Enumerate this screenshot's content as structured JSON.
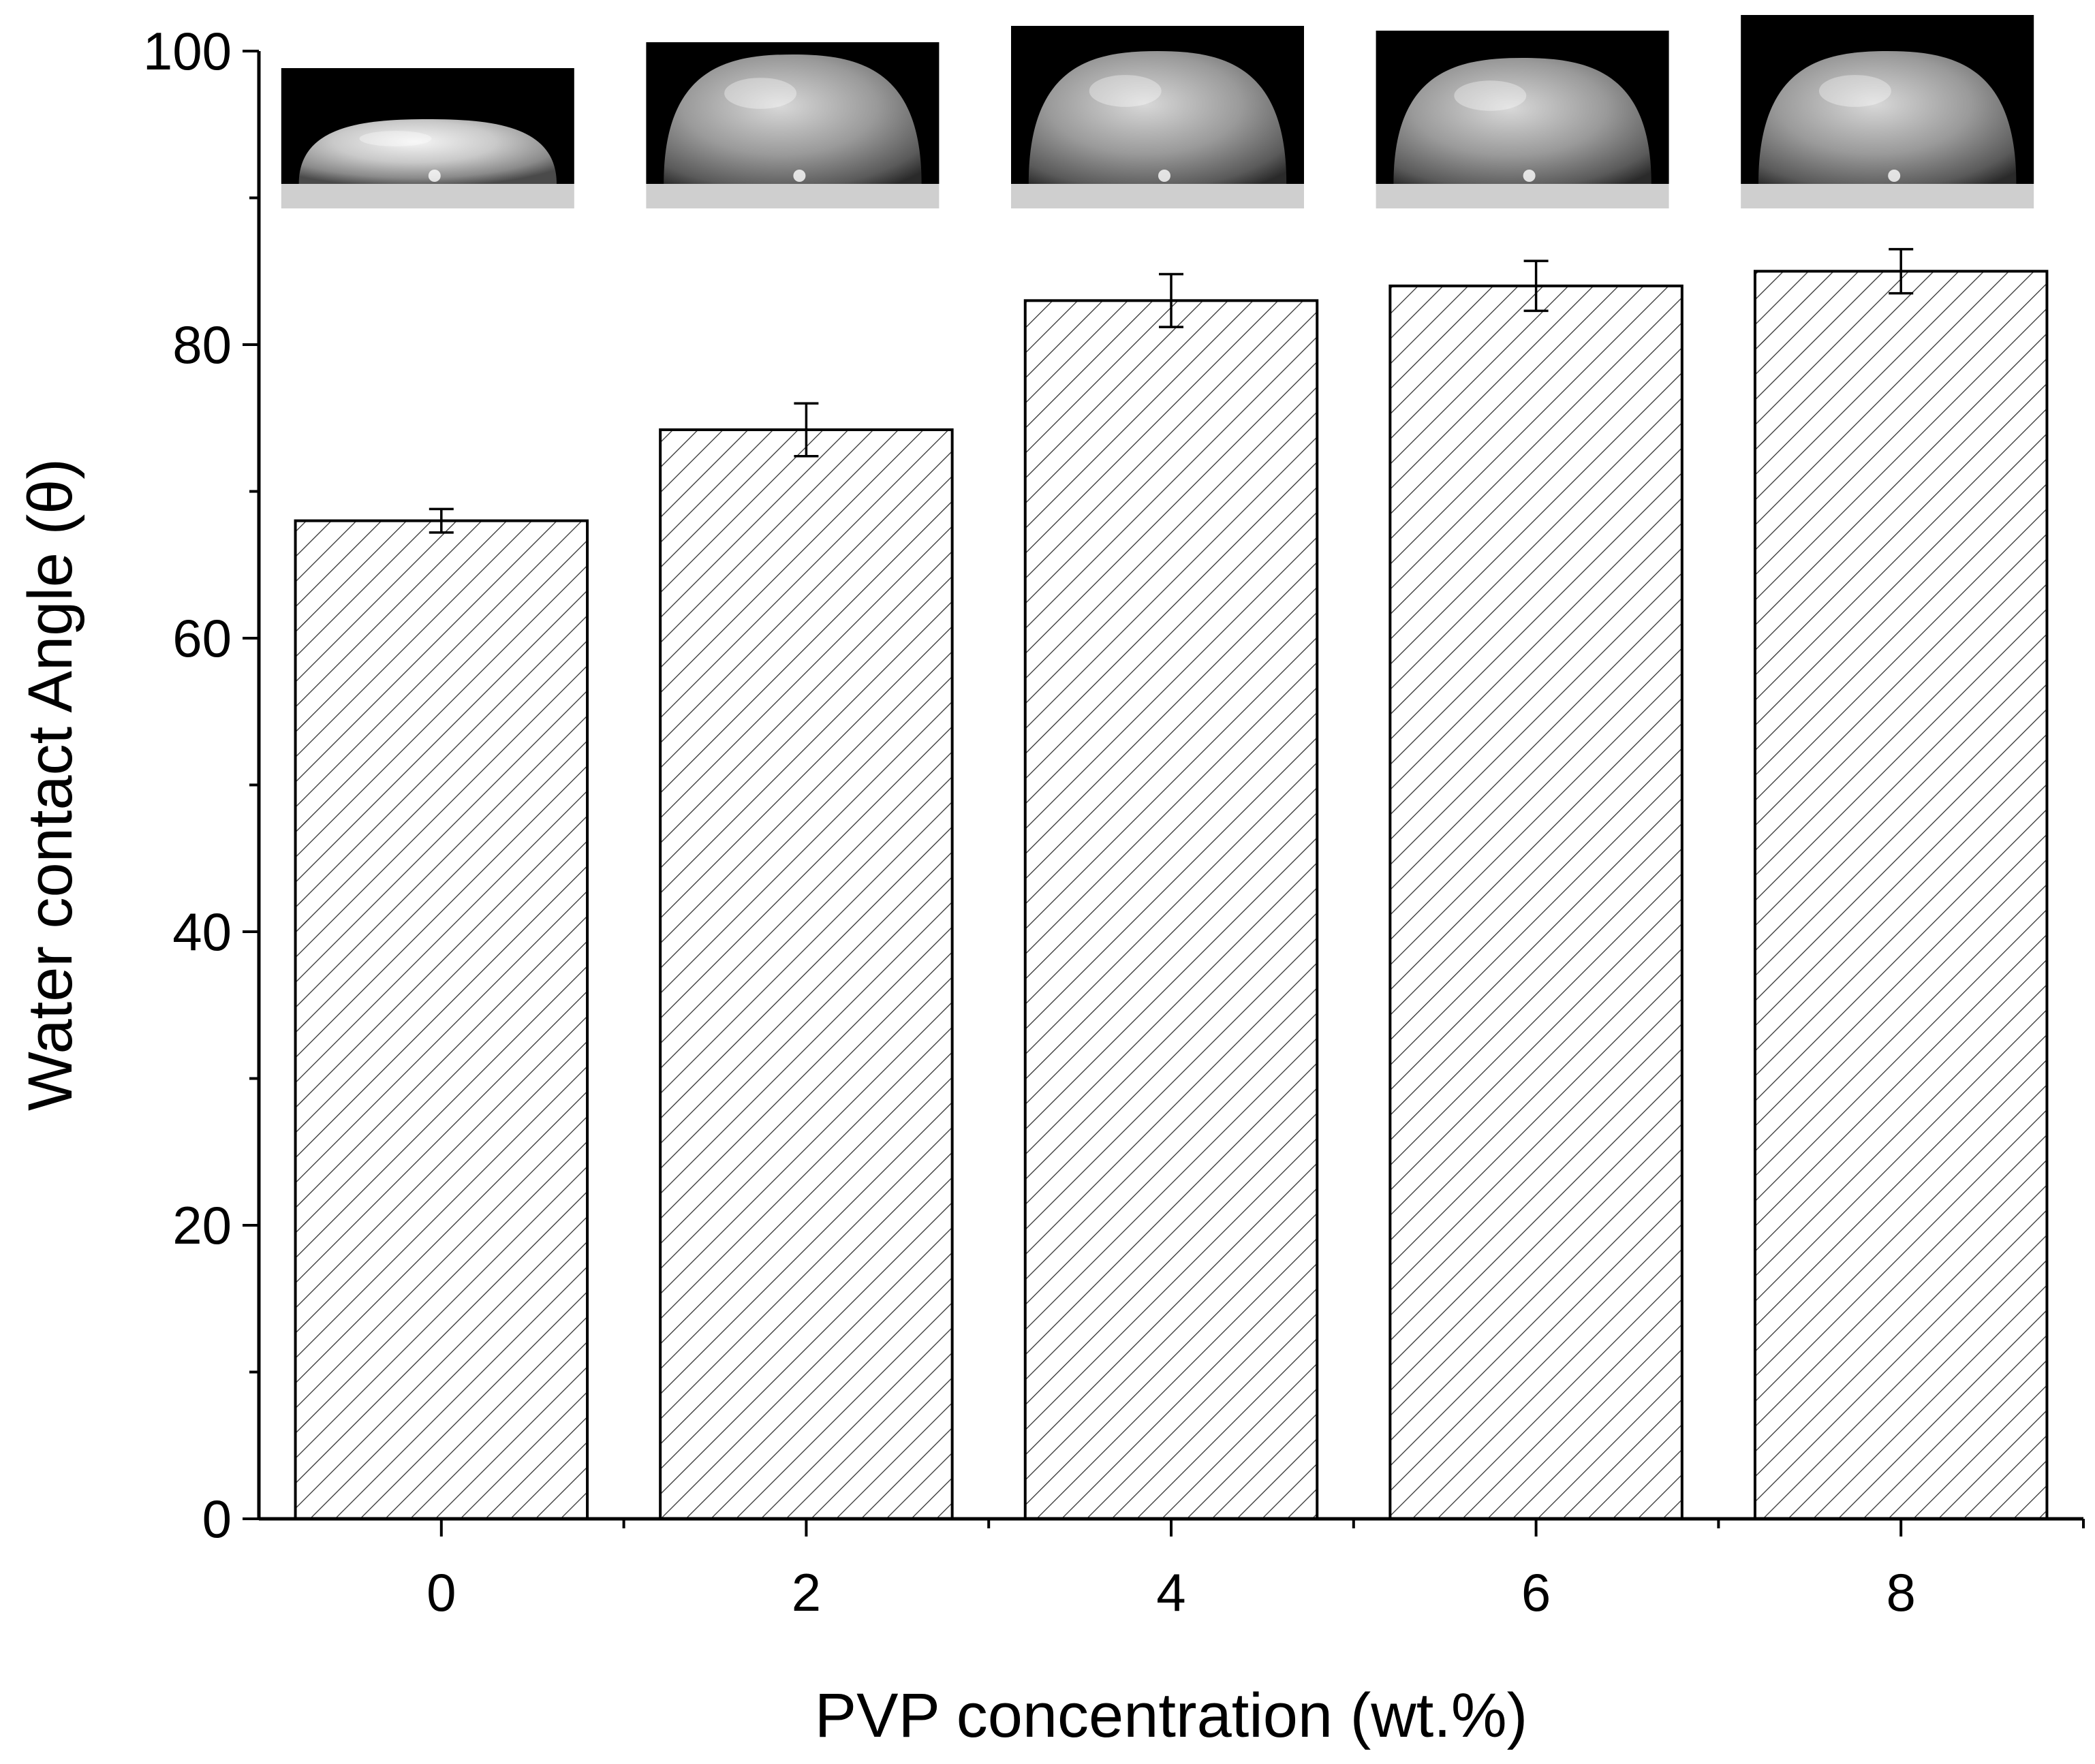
{
  "chart_data": {
    "type": "bar",
    "title": "",
    "xlabel": "PVP concentration (wt.%)",
    "ylabel": "Water contact Angle (θ)",
    "categories": [
      "0",
      "2",
      "4",
      "6",
      "8"
    ],
    "values": [
      68,
      74.2,
      83,
      84,
      85
    ],
    "errors": [
      0.8,
      1.8,
      1.8,
      1.7,
      1.5
    ],
    "ylim": [
      0,
      100
    ],
    "yticks": [
      "0",
      "20",
      "40",
      "60",
      "80",
      "100"
    ],
    "grid": false,
    "legend": "none",
    "bar_fill": "hatched",
    "inset_images": [
      "water-droplet-photo-0-wt",
      "water-droplet-photo-2-wt",
      "water-droplet-photo-4-wt",
      "water-droplet-photo-6-wt",
      "water-droplet-photo-8-wt"
    ]
  },
  "colors": {
    "axis": "#000000",
    "bar_edge": "#000000",
    "hatch": "#333333",
    "photo_background": "#000000",
    "photo_substrate": "#cfcfcf"
  }
}
